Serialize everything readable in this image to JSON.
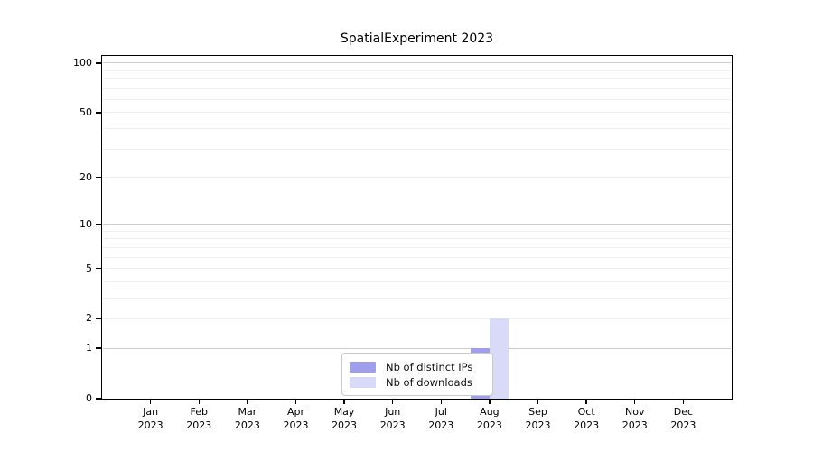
{
  "chart_data": {
    "type": "bar",
    "title": "SpatialExperiment 2023",
    "categories": [
      "Jan",
      "Feb",
      "Mar",
      "Apr",
      "May",
      "Jun",
      "Jul",
      "Aug",
      "Sep",
      "Oct",
      "Nov",
      "Dec"
    ],
    "year_label": "2023",
    "series": [
      {
        "name": "Nb of distinct IPs",
        "color": "#9f9fec",
        "values": [
          0,
          0,
          0,
          0,
          0,
          0,
          0,
          1,
          0,
          0,
          0,
          0
        ]
      },
      {
        "name": "Nb of downloads",
        "color": "#d9d9f8",
        "values": [
          0,
          0,
          0,
          0,
          0,
          0,
          0,
          2,
          0,
          0,
          0,
          0
        ]
      }
    ],
    "y_scale": "log1p",
    "ylim": [
      0,
      110.4
    ],
    "y_ticks": [
      0,
      1,
      2,
      5,
      10,
      20,
      50,
      100
    ],
    "grid_major": [
      1,
      10,
      100
    ],
    "grid_minor": [
      2,
      3,
      4,
      5,
      6,
      7,
      8,
      9,
      20,
      30,
      40,
      50,
      60,
      70,
      80,
      90
    ],
    "legend_position": "bottom-center",
    "xlabel": "",
    "ylabel": ""
  },
  "colors": {
    "axis": "#000000",
    "text": "#000000",
    "grid_major": "#cdcdcd",
    "grid_minor": "#f0f0f0",
    "legend_border": "#c9c9c9",
    "background": "#ffffff"
  }
}
